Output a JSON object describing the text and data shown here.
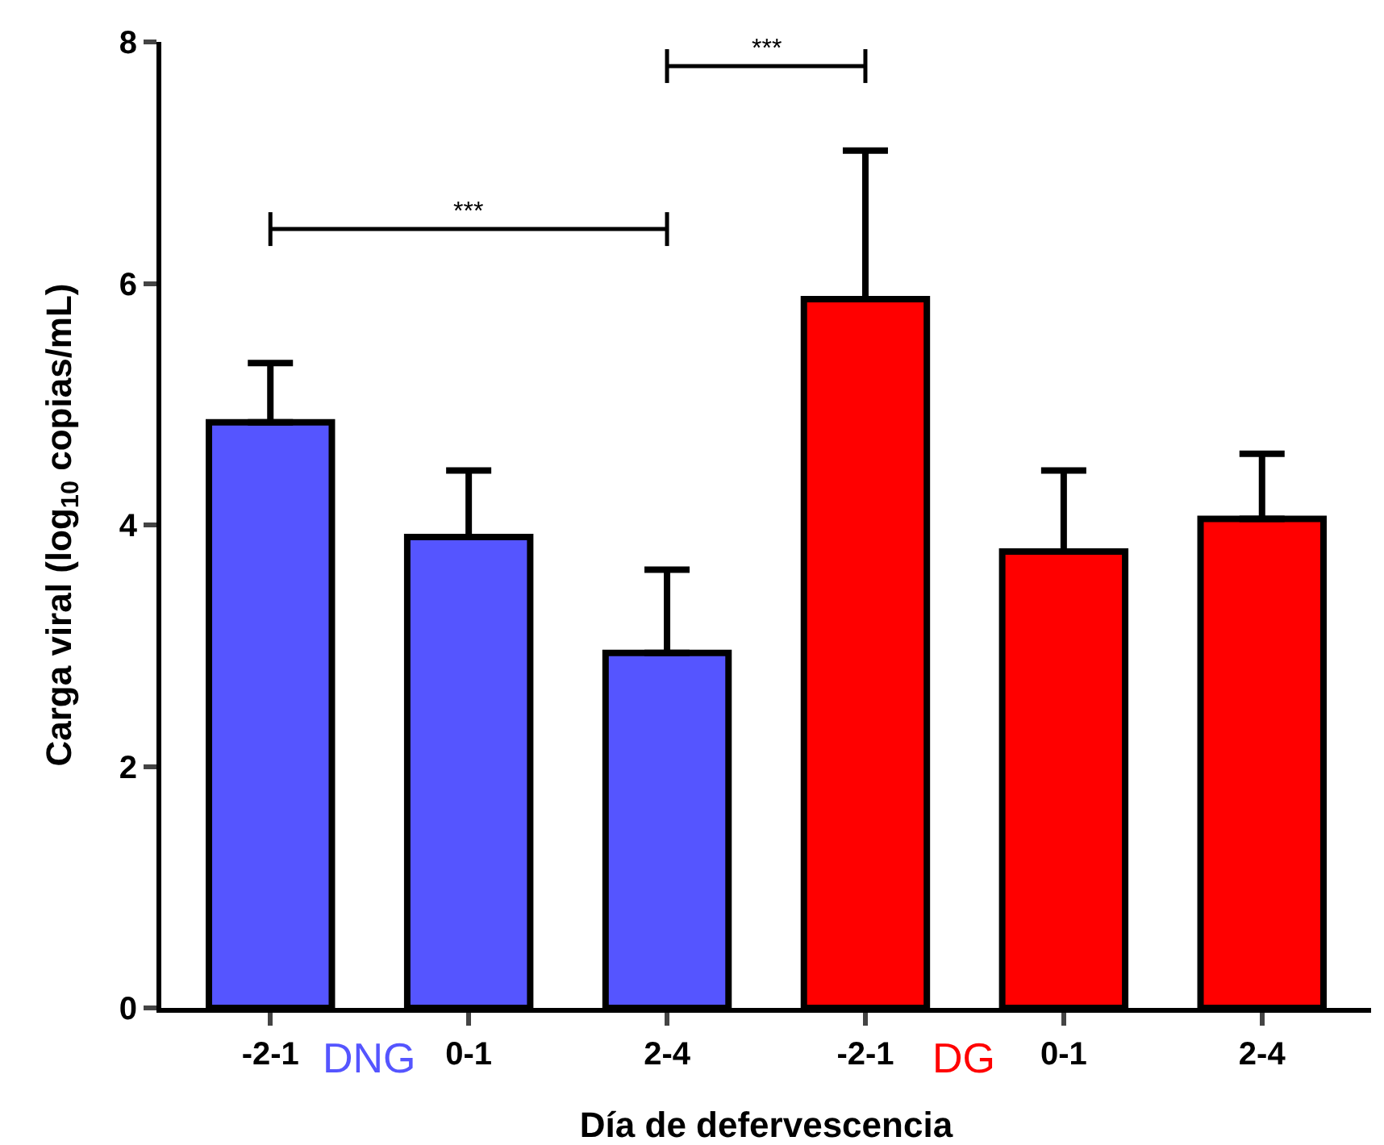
{
  "chart_data": {
    "type": "bar",
    "xlabel": "Día de defervescencia",
    "ylabel": "Carga viral (log$_{10}$ copias/mL)",
    "categories": [
      "-2-1",
      "0-1",
      "2-4",
      "-2-1",
      "0-1",
      "2-4"
    ],
    "series": [
      {
        "name": "DNG",
        "color": "#5555ff",
        "values": [
          4.85,
          3.9,
          2.94,
          null,
          null,
          null
        ],
        "errors": [
          [
            4.85,
            5.34
          ],
          [
            3.9,
            4.45
          ],
          [
            2.94,
            3.63
          ],
          null,
          null,
          null
        ]
      },
      {
        "name": "DG",
        "color": "#ff0000",
        "values": [
          null,
          null,
          null,
          5.87,
          3.78,
          4.05
        ],
        "errors": [
          null,
          null,
          null,
          [
            5.87,
            7.1
          ],
          [
            3.78,
            4.45
          ],
          [
            4.05,
            4.59
          ]
        ]
      }
    ],
    "ylim": [
      0,
      8
    ],
    "yticks": [
      0,
      2,
      4,
      6,
      8
    ],
    "grid": false,
    "legend": false,
    "annotations": [
      "***",
      "***"
    ]
  }
}
